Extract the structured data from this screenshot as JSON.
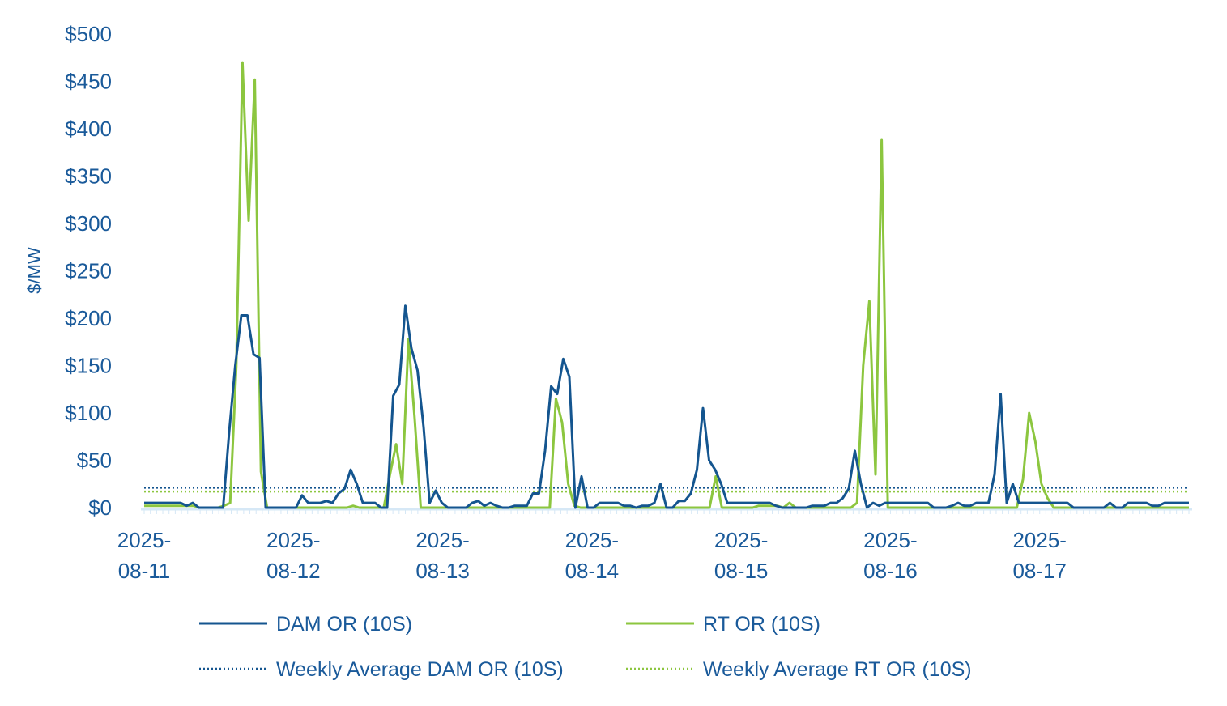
{
  "chart_data": {
    "type": "line",
    "title": "",
    "xlabel": "",
    "ylabel": "$/MW",
    "ylim": [
      0,
      500
    ],
    "yticks": [
      0,
      50,
      100,
      150,
      200,
      250,
      300,
      350,
      400,
      450,
      500
    ],
    "ytick_labels": [
      "$0",
      "$50",
      "$100",
      "$150",
      "$200",
      "$250",
      "$300",
      "$350",
      "$400",
      "$450",
      "$500"
    ],
    "xlim": [
      0,
      168
    ],
    "xticks": [
      {
        "hour": 0,
        "line1": "2025-",
        "line2": "08-11"
      },
      {
        "hour": 24,
        "line1": "2025-",
        "line2": "08-12"
      },
      {
        "hour": 48,
        "line1": "2025-",
        "line2": "08-13"
      },
      {
        "hour": 72,
        "line1": "2025-",
        "line2": "08-14"
      },
      {
        "hour": 96,
        "line1": "2025-",
        "line2": "08-15"
      },
      {
        "hour": 120,
        "line1": "2025-",
        "line2": "08-16"
      },
      {
        "hour": 144,
        "line1": "2025-",
        "line2": "08-17"
      }
    ],
    "grid": false,
    "legend_position": "bottom",
    "series": [
      {
        "name": "DAM OR (10S)",
        "style": "solid",
        "color": "#14558f",
        "values": [
          5,
          5,
          5,
          5,
          5,
          5,
          5,
          2,
          5,
          0,
          0,
          0,
          0,
          0,
          80,
          150,
          203,
          203,
          162,
          158,
          0,
          0,
          0,
          0,
          0,
          0,
          13,
          5,
          5,
          5,
          7,
          5,
          15,
          20,
          40,
          25,
          5,
          5,
          5,
          0,
          0,
          118,
          130,
          213,
          168,
          145,
          85,
          5,
          18,
          5,
          0,
          0,
          0,
          0,
          5,
          7,
          2,
          5,
          2,
          0,
          0,
          2,
          2,
          2,
          15,
          15,
          60,
          128,
          120,
          157,
          138,
          0,
          33,
          0,
          0,
          5,
          5,
          5,
          5,
          2,
          2,
          0,
          2,
          2,
          5,
          25,
          0,
          0,
          7,
          7,
          15,
          40,
          105,
          50,
          40,
          25,
          5,
          5,
          5,
          5,
          5,
          5,
          5,
          5,
          2,
          0,
          0,
          0,
          0,
          0,
          2,
          2,
          2,
          5,
          5,
          10,
          20,
          60,
          25,
          0,
          5,
          2,
          5,
          5,
          5,
          5,
          5,
          5,
          5,
          5,
          0,
          0,
          0,
          2,
          5,
          2,
          2,
          5,
          5,
          5,
          35,
          120,
          5,
          25,
          5,
          5,
          5,
          5,
          5,
          5,
          5,
          5,
          5,
          0,
          0,
          0,
          0,
          0,
          0,
          5,
          0,
          0,
          5,
          5,
          5,
          5,
          2,
          2,
          5,
          5,
          5,
          5,
          5
        ]
      },
      {
        "name": "RT OR (10S)",
        "style": "solid",
        "color": "#8cc63f",
        "values": [
          2,
          2,
          2,
          2,
          2,
          2,
          2,
          2,
          2,
          0,
          0,
          0,
          0,
          2,
          5,
          150,
          470,
          303,
          452,
          38,
          0,
          0,
          0,
          0,
          0,
          0,
          0,
          0,
          0,
          0,
          0,
          0,
          0,
          0,
          2,
          0,
          0,
          0,
          0,
          0,
          35,
          67,
          25,
          178,
          95,
          0,
          0,
          0,
          0,
          0,
          0,
          0,
          0,
          0,
          0,
          0,
          0,
          0,
          0,
          0,
          0,
          0,
          0,
          0,
          0,
          0,
          0,
          115,
          90,
          25,
          2,
          0,
          0,
          0,
          0,
          0,
          0,
          0,
          0,
          0,
          0,
          0,
          0,
          0,
          0,
          0,
          0,
          0,
          0,
          0,
          0,
          0,
          0,
          33,
          0,
          0,
          0,
          0,
          0,
          0,
          2,
          2,
          2,
          2,
          0,
          5,
          0,
          0,
          0,
          0,
          0,
          0,
          0,
          0,
          0,
          0,
          5,
          150,
          218,
          35,
          388,
          0,
          0,
          0,
          0,
          0,
          0,
          0,
          0,
          0,
          0,
          0,
          0,
          0,
          0,
          0,
          0,
          0,
          0,
          0,
          0,
          0,
          0,
          30,
          100,
          70,
          25,
          10,
          0,
          0,
          0,
          0,
          0,
          0,
          0,
          0,
          0,
          0,
          0,
          0,
          0,
          0,
          0,
          0,
          0,
          0,
          0,
          0,
          0,
          0,
          0
        ]
      },
      {
        "name": "Weekly Average DAM OR (10S)",
        "style": "dotted",
        "color": "#14558f",
        "value": 21
      },
      {
        "name": "Weekly Average RT OR (10S)",
        "style": "dotted",
        "color": "#8cc63f",
        "value": 17
      }
    ]
  }
}
